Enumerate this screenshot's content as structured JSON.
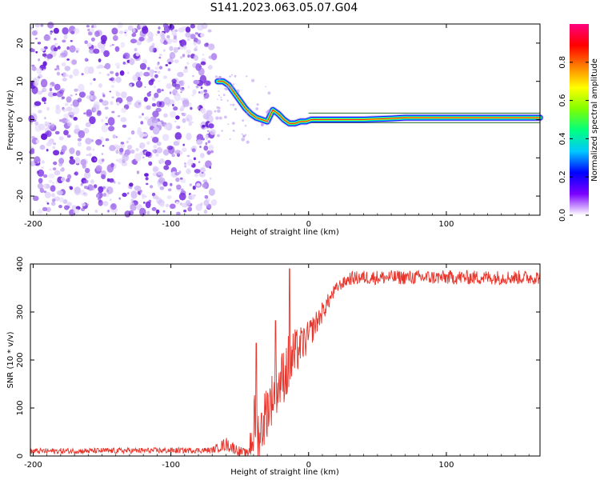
{
  "title": "S141.2023.063.05.07.G04",
  "colors": {
    "snr_line": "#e8352b",
    "axis": "#000000",
    "background": "#ffffff",
    "noise_dots": "#6a2bd8"
  },
  "chart_data": [
    {
      "type": "heatmap",
      "xlabel": "Height of straight line (km)",
      "ylabel": "Frequency (Hz)",
      "xlim": [
        -202,
        168
      ],
      "ylim": [
        -25,
        25
      ],
      "x_ticks": [
        -200,
        -100,
        0,
        100
      ],
      "y_ticks": [
        -20,
        -10,
        0,
        10,
        20
      ],
      "grid": false,
      "noise_region_x": [
        -202,
        -68
      ],
      "signal_track": {
        "x": [
          -66,
          -62,
          -58,
          -54,
          -50,
          -46,
          -42,
          -38,
          -34,
          -30,
          -26,
          -22,
          -18,
          -14,
          -10,
          -6,
          -2,
          2,
          20,
          40,
          60,
          70,
          80,
          100,
          120,
          140,
          160,
          168
        ],
        "y": [
          10,
          10,
          9,
          7,
          5,
          3,
          1.5,
          0.5,
          0,
          -0.5,
          2.5,
          1.5,
          0,
          -1,
          -1,
          -0.5,
          -0.5,
          0,
          0,
          0,
          0.3,
          0.5,
          0.5,
          0.5,
          0.5,
          0.5,
          0.5,
          0.5
        ]
      },
      "colorbar": {
        "label": "Normalized spectral amplitude",
        "range": [
          0,
          1
        ],
        "ticks": [
          "0.0",
          "0.2",
          "0.4",
          "0.6",
          "0.8"
        ],
        "tick_values": [
          0,
          0.2,
          0.4,
          0.6,
          0.8
        ],
        "colormap": [
          "#ffffff",
          "#7b00ff",
          "#0000ff",
          "#00c8ff",
          "#00ff80",
          "#80ff00",
          "#ffff00",
          "#ff8000",
          "#ff0000",
          "#ff0080"
        ]
      }
    },
    {
      "type": "line",
      "xlabel": "Height of straight line (km)",
      "ylabel": "SNR (10 * v/v)",
      "xlim": [
        -202,
        168
      ],
      "ylim": [
        0,
        400
      ],
      "x_ticks": [
        -200,
        -100,
        0,
        100
      ],
      "y_ticks": [
        0,
        100,
        200,
        300,
        400
      ],
      "grid": false,
      "series": [
        {
          "color": "#e8352b",
          "envelope_x": [
            -202,
            -70,
            -60,
            -50,
            -44,
            -40,
            -36,
            -30,
            -24,
            -18,
            -14,
            -10,
            -6,
            -2,
            2,
            6,
            10,
            14,
            18,
            22,
            26,
            30,
            40,
            60,
            100,
            140,
            168
          ],
          "mean_y": [
            10,
            12,
            25,
            10,
            5,
            60,
            40,
            100,
            135,
            170,
            190,
            210,
            230,
            240,
            260,
            280,
            300,
            320,
            340,
            355,
            362,
            370,
            372,
            372,
            372,
            372,
            372
          ],
          "spread": [
            6,
            6,
            15,
            10,
            8,
            80,
            60,
            60,
            50,
            60,
            70,
            55,
            40,
            35,
            30,
            25,
            22,
            18,
            15,
            12,
            12,
            14,
            15,
            15,
            15,
            15,
            15
          ],
          "spikes": [
            {
              "x": -14,
              "y": 390
            },
            {
              "x": -38,
              "y": 235
            },
            {
              "x": -24,
              "y": 282
            }
          ]
        }
      ]
    }
  ]
}
